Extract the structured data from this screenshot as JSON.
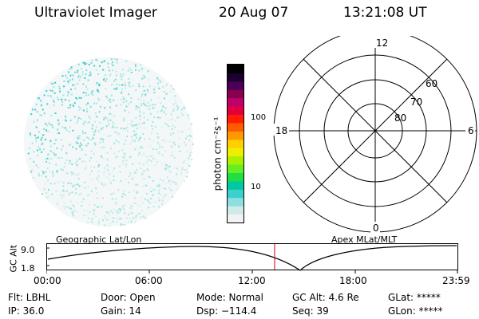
{
  "header": {
    "title": "Ultraviolet Imager",
    "date": "20 Aug 07",
    "time": "13:21:08 UT"
  },
  "colorbar": {
    "unit": "photon cm⁻²s⁻¹",
    "tick_labels": [
      "100",
      "10"
    ],
    "colors": [
      "#f2f2f2",
      "#cfeaea",
      "#8fdede",
      "#3ccfcf",
      "#00c8a0",
      "#22dd44",
      "#66ee22",
      "#aaf000",
      "#eeee00",
      "#ffd000",
      "#ff9900",
      "#ff5a00",
      "#ff1c00",
      "#e2003c",
      "#c0006a",
      "#880050",
      "#4a0055",
      "#1a0030",
      "#000000"
    ]
  },
  "polar_plot": {
    "clock_labels": [
      "12",
      "18",
      "6",
      "0"
    ],
    "latitude_labels": [
      "60",
      "70",
      "80"
    ]
  },
  "strip": {
    "left_label": "Geographic Lat/Lon",
    "right_label": "Apex MLat/MLT",
    "axis_label": "GC Alt",
    "y_top": "9.0",
    "y_bottom": "1.8",
    "time_ticks": [
      "00:00",
      "06:00",
      "12:00",
      "18:00",
      "23:59"
    ],
    "current_time_marker": "13:21"
  },
  "status": {
    "flt": "Flt: LBHL",
    "ip": "IP: 36.0",
    "door": "Door: Open",
    "gain": "Gain: 14",
    "mode": "Mode: Normal",
    "dsp": "Dsp: −114.4",
    "gcalt": "GC Alt: 4.6 Re",
    "seq": "Seq: 39",
    "glat": "GLat: *****",
    "glon": "GLon: *****"
  },
  "colors": {
    "orbit_line": "#000000",
    "time_marker": "#cc0000",
    "speckle": "#9ee7e7"
  }
}
